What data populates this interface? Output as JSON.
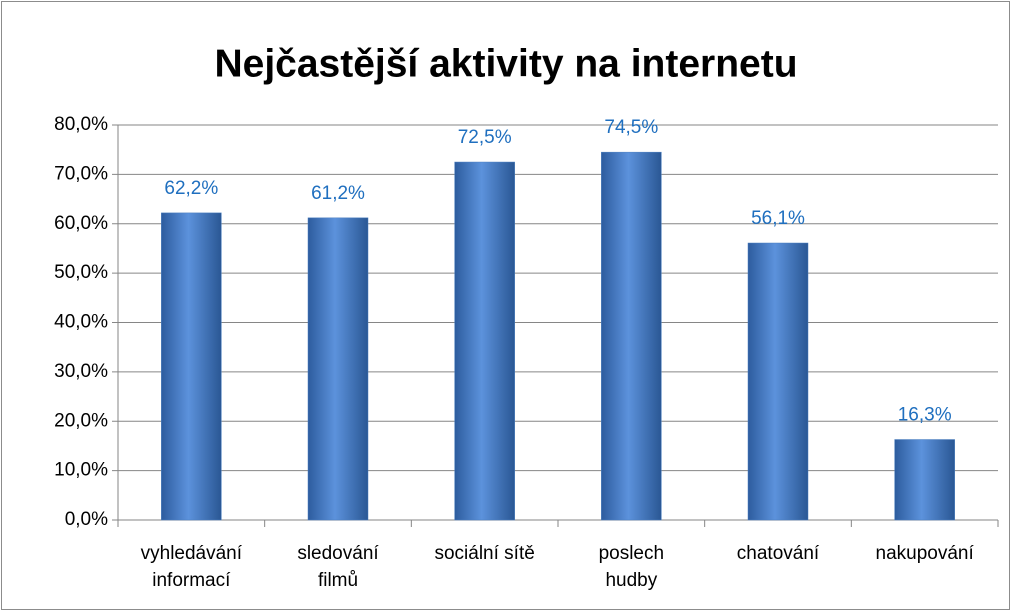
{
  "chart_data": {
    "type": "bar",
    "title": "Nejčastější aktivity na internetu",
    "categories": [
      "vyhledávání\ninformací",
      "sledování\nfilmů",
      "sociální sítě",
      "poslech\nhudby",
      "chatování",
      "nakupování"
    ],
    "values": [
      62.2,
      61.2,
      72.5,
      74.5,
      56.1,
      16.3
    ],
    "value_labels": [
      "62,2%",
      "61,2%",
      "72,5%",
      "74,5%",
      "56,1%",
      "16,3%"
    ],
    "color": "#4a7ebf",
    "label_color": "#1f6fbf",
    "ylim": [
      0,
      80
    ],
    "yticks": [
      {
        "value": 0,
        "label": "0,0%"
      },
      {
        "value": 10,
        "label": "10,0%"
      },
      {
        "value": 20,
        "label": "20,0%"
      },
      {
        "value": 30,
        "label": "30,0%"
      },
      {
        "value": 40,
        "label": "40,0%"
      },
      {
        "value": 50,
        "label": "50,0%"
      },
      {
        "value": 60,
        "label": "60,0%"
      },
      {
        "value": 70,
        "label": "70,0%"
      },
      {
        "value": 80,
        "label": "80,0%"
      }
    ],
    "grid": true
  }
}
